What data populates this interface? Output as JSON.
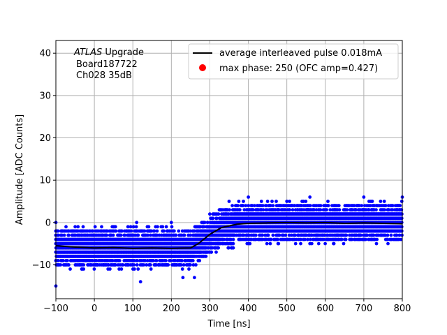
{
  "chart_data": {
    "type": "scatter",
    "xlabel": "Time [ns]",
    "ylabel": "Amplitude [ADC Counts]",
    "xlim": [
      -100,
      800
    ],
    "ylim": [
      -18,
      43
    ],
    "xticks": [
      -100,
      0,
      100,
      200,
      300,
      400,
      500,
      600,
      700,
      800
    ],
    "yticks": [
      -10,
      0,
      10,
      20,
      30,
      40
    ],
    "grid": true,
    "legend_position": "upper-right",
    "annotation": {
      "line1_italic": "ATLAS",
      "line1_rest": " Upgrade",
      "line2": "Board187722",
      "line3": "Ch028 35dB"
    },
    "series": [
      {
        "name": "average interleaved pulse 0.018mA",
        "type": "line",
        "color": "#000000",
        "x": [
          -100,
          -50,
          0,
          50,
          100,
          150,
          200,
          250,
          270,
          300,
          330,
          370,
          400,
          450,
          500,
          550,
          600,
          650,
          700,
          750,
          800
        ],
        "y": [
          -5.5,
          -5.8,
          -6.0,
          -5.9,
          -6.1,
          -6.0,
          -6.1,
          -6.0,
          -5.0,
          -2.8,
          -1.2,
          -0.4,
          -0.2,
          -0.1,
          0.0,
          -0.1,
          0.0,
          -0.2,
          -0.1,
          -0.2,
          -0.3
        ]
      },
      {
        "name": "max phase: 250 (OFC amp=0.427)",
        "type": "scatter",
        "color": "#ff0000",
        "x": [],
        "y": []
      },
      {
        "name": "",
        "type": "scatter",
        "color": "#0000ff",
        "x": [
          -100,
          -50,
          50,
          110,
          200,
          300,
          350,
          400,
          450,
          500,
          560,
          700,
          800,
          230,
          260,
          120,
          -100
        ],
        "y": [
          0,
          -1,
          -1,
          0,
          0,
          2,
          5,
          6,
          5,
          5,
          6,
          6,
          6,
          -13,
          -13,
          -14,
          -15
        ]
      }
    ]
  }
}
